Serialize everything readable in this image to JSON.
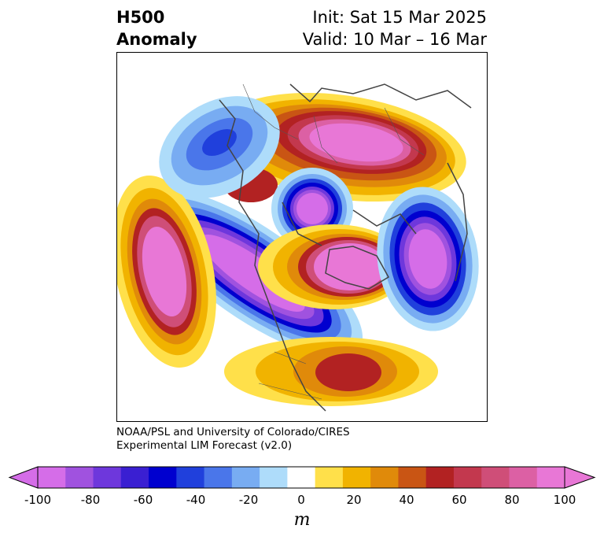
{
  "title": {
    "left_line1": "H500",
    "left_line2": "Anomaly",
    "init": "Init: Sat 15 Mar 2025",
    "valid": "Valid: 10 Mar – 16 Mar"
  },
  "credit": {
    "line1": "NOAA/PSL and University of Colorado/CIRES",
    "line2": "Experimental LIM Forecast (v2.0)"
  },
  "colorbar": {
    "levels": [
      -100,
      -90,
      -80,
      -70,
      -60,
      -50,
      -40,
      -30,
      -20,
      -10,
      10,
      20,
      30,
      40,
      50,
      60,
      70,
      80,
      90,
      100
    ],
    "colors": [
      "#d56de8",
      "#a052df",
      "#6e37dc",
      "#3a1fd2",
      "#0000cf",
      "#2040dc",
      "#4a76ea",
      "#78acf2",
      "#aedcfa",
      "#ffffff",
      "#ffe04a",
      "#f1b300",
      "#e08a0a",
      "#c95514",
      "#b22222",
      "#c3384e",
      "#cf4e78",
      "#dc60a4",
      "#e877d6"
    ],
    "ticks": [
      "-100",
      "-80",
      "-60",
      "-40",
      "-20",
      "0",
      "20",
      "40",
      "60",
      "80",
      "100"
    ],
    "unit": "m",
    "extend": "both"
  },
  "map": {
    "projection": "polar stereographic, North Pole",
    "anomaly_centers": [
      {
        "sign": "negative",
        "peak": -100,
        "region": "North Pacific (Gulf of Alaska to western Canada)"
      },
      {
        "sign": "negative",
        "peak": -100,
        "region": "Hudson Bay"
      },
      {
        "sign": "negative",
        "peak": -100,
        "region": "Northern Europe / Scandinavia"
      },
      {
        "sign": "negative",
        "peak": -40,
        "region": "Eastern Siberia"
      },
      {
        "sign": "positive",
        "peak": 100,
        "region": "Arctic Ocean / Siberia"
      },
      {
        "sign": "positive",
        "peak": 100,
        "region": "Greenland"
      },
      {
        "sign": "positive",
        "peak": 100,
        "region": "Central North Pacific"
      },
      {
        "sign": "positive",
        "peak": 60,
        "region": "Central Asia"
      },
      {
        "sign": "positive",
        "peak": 60,
        "region": "Southeastern United States"
      }
    ]
  }
}
